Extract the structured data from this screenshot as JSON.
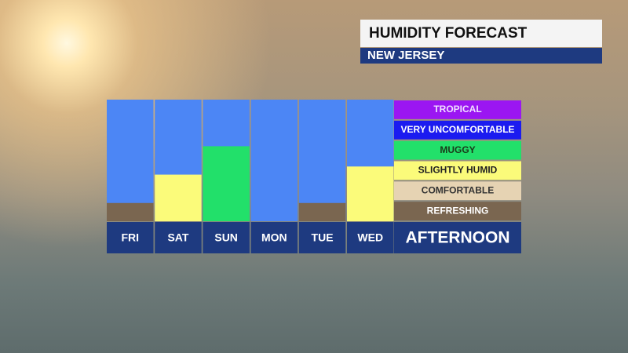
{
  "chart_data": {
    "type": "bar",
    "title": "HUMIDITY FORECAST",
    "subtitle": "NEW JERSEY",
    "period_label": "AFTERNOON",
    "categories": [
      "FRI",
      "SAT",
      "SUN",
      "MON",
      "TUE",
      "WED"
    ],
    "values": [
      0.9,
      2.3,
      3.7,
      null,
      0.9,
      2.7
    ],
    "ylim": [
      0,
      6
    ],
    "levels": [
      {
        "name": "REFRESHING",
        "color": "#7a6650",
        "text_color": "#ffffff"
      },
      {
        "name": "COMFORTABLE",
        "color": "#e6d3b3",
        "text_color": "#333333"
      },
      {
        "name": "SLIGHTLY HUMID",
        "color": "#fbfb7a",
        "text_color": "#222222"
      },
      {
        "name": "MUGGY",
        "color": "#22e06a",
        "text_color": "#1a3a1a"
      },
      {
        "name": "VERY UNCOMFORTABLE",
        "color": "#1b1bf0",
        "text_color": "#ffffff"
      },
      {
        "name": "TROPICAL",
        "color": "#9b16f2",
        "text_color": "#f0e0ff"
      }
    ]
  }
}
